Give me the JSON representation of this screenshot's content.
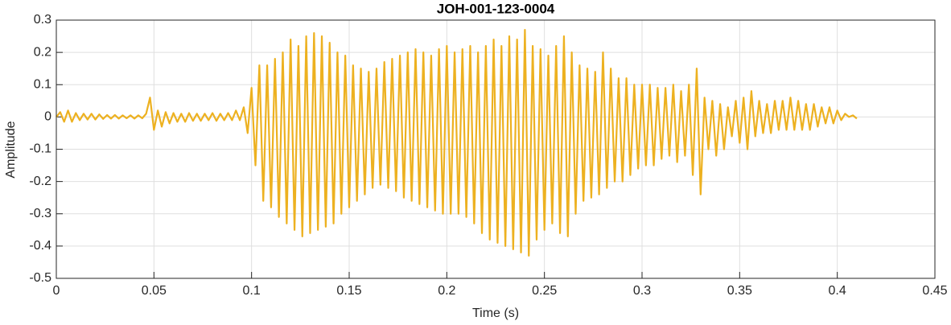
{
  "chart_data": {
    "type": "line",
    "title": "JOH-001-123-0004",
    "xlabel": "Time (s)",
    "ylabel": "Amplitude",
    "x": [
      0,
      0.002,
      0.004,
      0.006,
      0.008,
      0.01,
      0.012,
      0.014,
      0.016,
      0.018,
      0.02,
      0.022,
      0.024,
      0.026,
      0.028,
      0.03,
      0.032,
      0.034,
      0.036,
      0.038,
      0.04,
      0.042,
      0.044,
      0.046,
      0.048,
      0.05,
      0.052,
      0.054,
      0.056,
      0.058,
      0.06,
      0.062,
      0.064,
      0.066,
      0.068,
      0.07,
      0.072,
      0.074,
      0.076,
      0.078,
      0.08,
      0.082,
      0.084,
      0.086,
      0.088,
      0.09,
      0.092,
      0.094,
      0.096,
      0.098,
      0.1,
      0.102,
      0.104,
      0.106,
      0.108,
      0.11,
      0.112,
      0.114,
      0.116,
      0.118,
      0.12,
      0.122,
      0.124,
      0.126,
      0.128,
      0.13,
      0.132,
      0.134,
      0.136,
      0.138,
      0.14,
      0.142,
      0.144,
      0.146,
      0.148,
      0.15,
      0.152,
      0.154,
      0.156,
      0.158,
      0.16,
      0.162,
      0.164,
      0.166,
      0.168,
      0.17,
      0.172,
      0.174,
      0.176,
      0.178,
      0.18,
      0.182,
      0.184,
      0.186,
      0.188,
      0.19,
      0.192,
      0.194,
      0.196,
      0.198,
      0.2,
      0.202,
      0.204,
      0.206,
      0.208,
      0.21,
      0.212,
      0.214,
      0.216,
      0.218,
      0.22,
      0.222,
      0.224,
      0.226,
      0.228,
      0.23,
      0.232,
      0.234,
      0.236,
      0.238,
      0.24,
      0.242,
      0.244,
      0.246,
      0.248,
      0.25,
      0.252,
      0.254,
      0.256,
      0.258,
      0.26,
      0.262,
      0.264,
      0.266,
      0.268,
      0.27,
      0.272,
      0.274,
      0.276,
      0.278,
      0.28,
      0.282,
      0.284,
      0.286,
      0.288,
      0.29,
      0.292,
      0.294,
      0.296,
      0.298,
      0.3,
      0.302,
      0.304,
      0.306,
      0.308,
      0.31,
      0.312,
      0.314,
      0.316,
      0.318,
      0.32,
      0.322,
      0.324,
      0.326,
      0.328,
      0.33,
      0.332,
      0.334,
      0.336,
      0.338,
      0.34,
      0.342,
      0.344,
      0.346,
      0.348,
      0.35,
      0.352,
      0.354,
      0.356,
      0.358,
      0.36,
      0.362,
      0.364,
      0.366,
      0.368,
      0.37,
      0.372,
      0.374,
      0.376,
      0.378,
      0.38,
      0.382,
      0.384,
      0.386,
      0.388,
      0.39,
      0.392,
      0.394,
      0.396,
      0.398,
      0.4,
      0.402,
      0.404,
      0.406,
      0.408,
      0.41
    ],
    "series": [
      {
        "color": "#EDB120",
        "values": [
          0,
          0.015,
          -0.015,
          0.02,
          -0.015,
          0.012,
          -0.01,
          0.01,
          -0.008,
          0.01,
          -0.008,
          0.008,
          -0.006,
          0.006,
          -0.005,
          0.006,
          -0.005,
          0.005,
          -0.004,
          0.005,
          -0.005,
          0.005,
          -0.004,
          0.01,
          0.06,
          -0.04,
          0.02,
          -0.03,
          0.015,
          -0.02,
          0.012,
          -0.015,
          0.01,
          -0.015,
          0.012,
          -0.012,
          0.01,
          -0.012,
          0.01,
          -0.01,
          0.012,
          -0.012,
          0.01,
          -0.01,
          0.012,
          -0.01,
          0.02,
          -0.01,
          0.03,
          -0.05,
          0.09,
          -0.15,
          0.16,
          -0.26,
          0.16,
          -0.28,
          0.18,
          -0.31,
          0.2,
          -0.33,
          0.24,
          -0.35,
          0.22,
          -0.37,
          0.25,
          -0.36,
          0.26,
          -0.35,
          0.25,
          -0.34,
          0.23,
          -0.33,
          0.2,
          -0.3,
          0.19,
          -0.28,
          0.16,
          -0.26,
          0.15,
          -0.24,
          0.14,
          -0.22,
          0.15,
          -0.21,
          0.17,
          -0.22,
          0.18,
          -0.23,
          0.19,
          -0.25,
          0.2,
          -0.26,
          0.21,
          -0.27,
          0.2,
          -0.28,
          0.19,
          -0.29,
          0.21,
          -0.3,
          0.22,
          -0.3,
          0.2,
          -0.3,
          0.21,
          -0.31,
          0.22,
          -0.33,
          0.2,
          -0.36,
          0.22,
          -0.38,
          0.24,
          -0.39,
          0.22,
          -0.4,
          0.25,
          -0.41,
          0.24,
          -0.42,
          0.27,
          -0.43,
          0.22,
          -0.38,
          0.21,
          -0.35,
          0.19,
          -0.33,
          0.22,
          -0.36,
          0.25,
          -0.37,
          0.2,
          -0.3,
          0.16,
          -0.26,
          0.15,
          -0.25,
          0.14,
          -0.24,
          0.2,
          -0.22,
          0.15,
          -0.2,
          0.12,
          -0.2,
          0.12,
          -0.18,
          0.1,
          -0.16,
          0.1,
          -0.15,
          0.1,
          -0.15,
          0.09,
          -0.13,
          0.09,
          -0.12,
          0.1,
          -0.14,
          0.08,
          -0.12,
          0.1,
          -0.18,
          0.15,
          -0.24,
          0.06,
          -0.1,
          0.05,
          -0.12,
          0.04,
          -0.1,
          0.03,
          -0.06,
          0.05,
          -0.08,
          0.06,
          -0.1,
          0.08,
          -0.06,
          0.05,
          -0.05,
          0.04,
          -0.05,
          0.05,
          -0.04,
          0.05,
          -0.04,
          0.06,
          -0.04,
          0.05,
          -0.04,
          0.04,
          -0.04,
          0.04,
          -0.03,
          0.03,
          -0.02,
          0.03,
          -0.02,
          0.02,
          -0.01,
          0.01,
          0,
          0.005,
          -0.005
        ]
      }
    ],
    "xlim": [
      0,
      0.45
    ],
    "xticks": [
      0,
      0.05,
      0.1,
      0.15,
      0.2,
      0.25,
      0.3,
      0.35,
      0.4,
      0.45
    ],
    "ylim": [
      -0.5,
      0.3
    ],
    "yticks": [
      -0.5,
      -0.4,
      -0.3,
      -0.2,
      -0.1,
      0,
      0.1,
      0.2,
      0.3
    ],
    "grid": true
  }
}
